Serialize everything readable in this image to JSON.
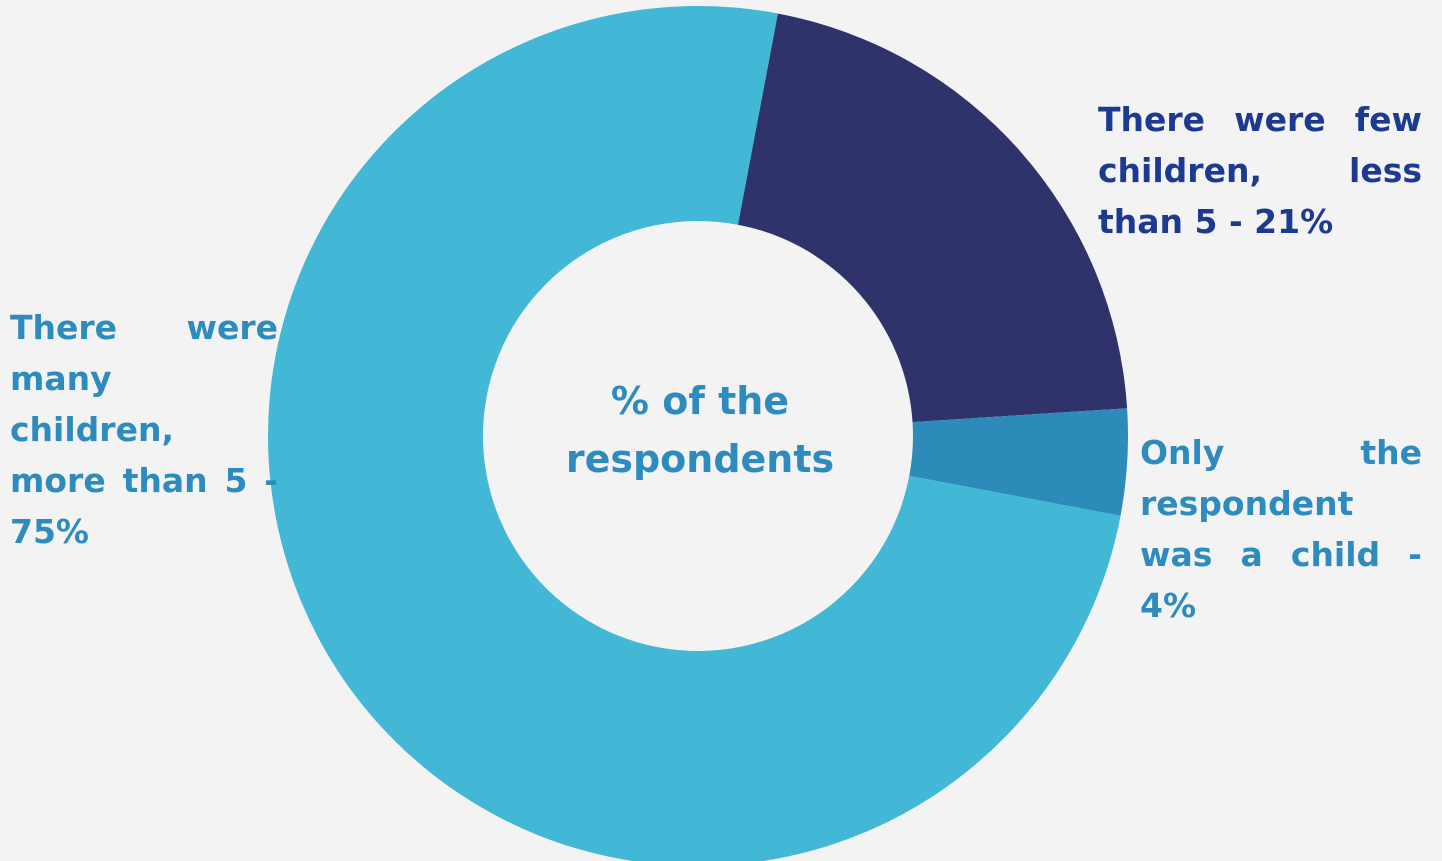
{
  "chart_data": {
    "type": "pie",
    "donut": true,
    "center_text": "% of the respondents",
    "categories": [
      "There were few children, less than 5 - 21%",
      "Only the respondent was a child - 4%",
      "There were many children, more than 5 - 75%"
    ],
    "values": [
      21,
      4,
      75
    ],
    "colors": [
      "#30336b",
      "#2d8bba",
      "#42b7d6"
    ],
    "legend": "none"
  }
}
